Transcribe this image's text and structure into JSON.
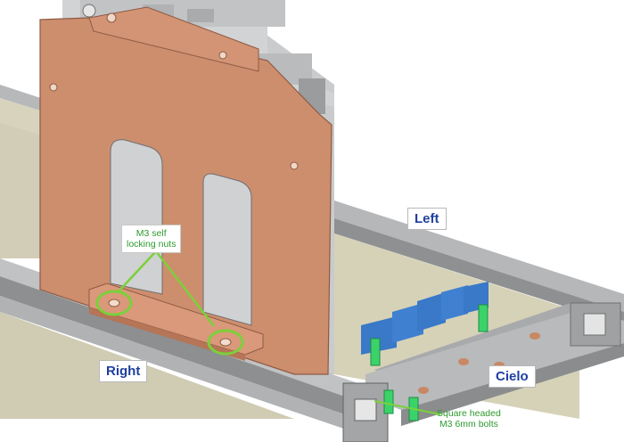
{
  "labels": {
    "left": "Left",
    "right": "Right",
    "cielo": "Cielo"
  },
  "callouts": {
    "nuts": [
      "M3 self",
      "locking nuts"
    ],
    "bolts": [
      "Square headed",
      "M3 6mm bolts"
    ]
  },
  "colors": {
    "copper_plate": "#cd8e6e",
    "copper_edge": "#a0644a",
    "rail": "#a7a9ab",
    "rail_dark": "#6d6f71",
    "connector_blue": "#3a78c8",
    "standoff_green": "#3bd26a",
    "highlight_green": "#7ad13a",
    "label_text": "#1f3fa0",
    "callout_text": "#2e9a2e"
  }
}
